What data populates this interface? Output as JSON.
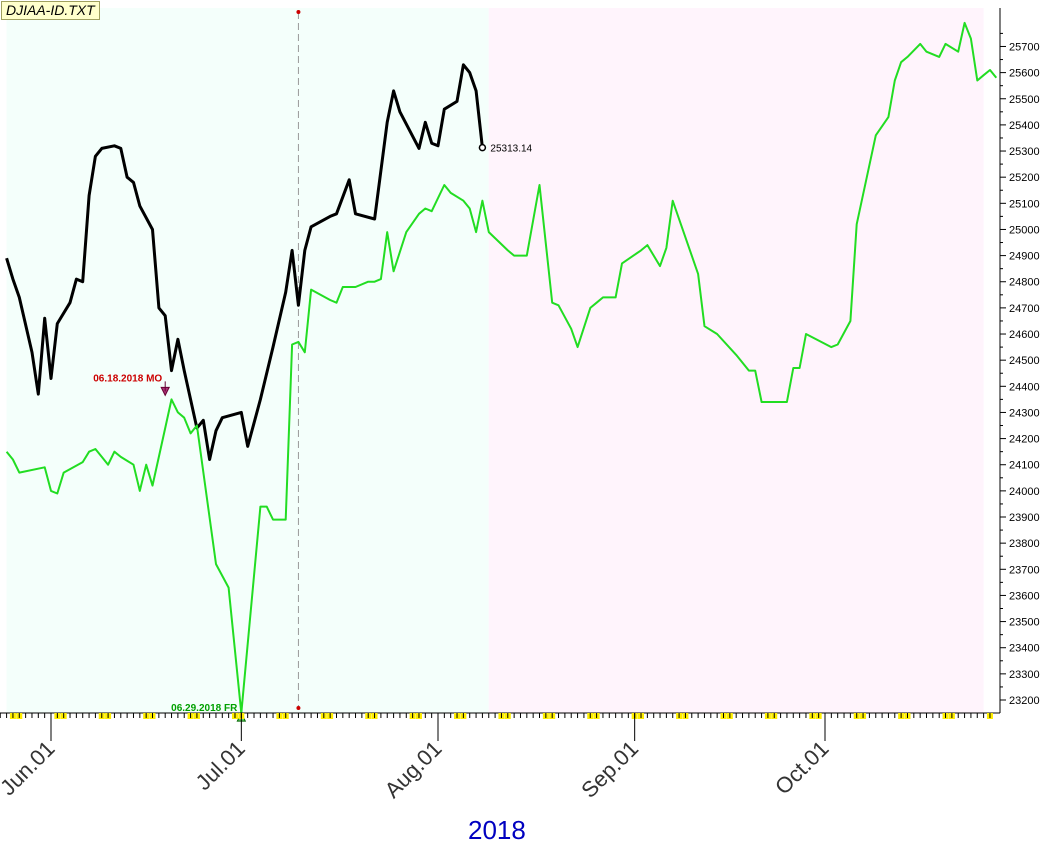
{
  "header": {
    "title": "DJIAA-ID.TXT"
  },
  "footer": {
    "year": "2018"
  },
  "colors": {
    "bg_left": "#f4fffb",
    "bg_right": "#fff4fc",
    "black_series": "#000000",
    "green_series": "#22dd22",
    "marker_down": "#cc0000",
    "marker_up": "#00a000",
    "year_label": "#0000c0",
    "title_bg": "#ffffcc"
  },
  "chart_data": {
    "type": "line",
    "title": "DJIAA-ID.TXT",
    "ylim": [
      23140,
      25780
    ],
    "y_ticks": [
      23200,
      23300,
      23400,
      23500,
      23600,
      23700,
      23800,
      23900,
      24000,
      24100,
      24200,
      24300,
      24400,
      24500,
      24600,
      24700,
      24800,
      24900,
      25000,
      25100,
      25200,
      25300,
      25400,
      25500,
      25600,
      25700
    ],
    "x_ticks": [
      {
        "date": "2018-06-01",
        "label": "Jun.01"
      },
      {
        "date": "2018-07-01",
        "label": "Jul.01"
      },
      {
        "date": "2018-08-01",
        "label": "Aug.01"
      },
      {
        "date": "2018-09-01",
        "label": "Sep.01"
      },
      {
        "date": "2018-10-01",
        "label": "Oct.01"
      }
    ],
    "x_range": [
      "2018-05-25",
      "2018-10-26"
    ],
    "shading": [
      {
        "from": "2018-05-25",
        "to": "2018-08-09",
        "color": "#f4fffb"
      },
      {
        "from": "2018-08-09",
        "to": "2018-10-26",
        "color": "#fff4fc"
      }
    ],
    "vline": {
      "date": "2018-07-10"
    },
    "series": [
      {
        "color": "#000000",
        "points": [
          [
            "2018-05-25",
            24890
          ],
          [
            "2018-05-26",
            24810
          ],
          [
            "2018-05-27",
            24740
          ],
          [
            "2018-05-29",
            24530
          ],
          [
            "2018-05-30",
            24370
          ],
          [
            "2018-05-31",
            24660
          ],
          [
            "2018-06-01",
            24430
          ],
          [
            "2018-06-02",
            24640
          ],
          [
            "2018-06-04",
            24720
          ],
          [
            "2018-06-05",
            24810
          ],
          [
            "2018-06-06",
            24800
          ],
          [
            "2018-06-07",
            25130
          ],
          [
            "2018-06-08",
            25280
          ],
          [
            "2018-06-09",
            25310
          ],
          [
            "2018-06-11",
            25320
          ],
          [
            "2018-06-12",
            25310
          ],
          [
            "2018-06-13",
            25200
          ],
          [
            "2018-06-14",
            25180
          ],
          [
            "2018-06-15",
            25090
          ],
          [
            "2018-06-17",
            25000
          ],
          [
            "2018-06-18",
            24700
          ],
          [
            "2018-06-19",
            24670
          ],
          [
            "2018-06-20",
            24460
          ],
          [
            "2018-06-21",
            24580
          ],
          [
            "2018-06-22",
            24460
          ],
          [
            "2018-06-24",
            24240
          ],
          [
            "2018-06-25",
            24270
          ],
          [
            "2018-06-26",
            24120
          ],
          [
            "2018-06-27",
            24230
          ],
          [
            "2018-06-28",
            24280
          ],
          [
            "2018-07-01",
            24300
          ],
          [
            "2018-07-02",
            24170
          ],
          [
            "2018-07-04",
            24350
          ],
          [
            "2018-07-06",
            24550
          ],
          [
            "2018-07-08",
            24760
          ],
          [
            "2018-07-09",
            24920
          ],
          [
            "2018-07-10",
            24710
          ],
          [
            "2018-07-11",
            24920
          ],
          [
            "2018-07-12",
            25010
          ],
          [
            "2018-07-15",
            25050
          ],
          [
            "2018-07-16",
            25060
          ],
          [
            "2018-07-18",
            25190
          ],
          [
            "2018-07-19",
            25060
          ],
          [
            "2018-07-22",
            25040
          ],
          [
            "2018-07-24",
            25410
          ],
          [
            "2018-07-25",
            25530
          ],
          [
            "2018-07-26",
            25450
          ],
          [
            "2018-07-29",
            25310
          ],
          [
            "2018-07-30",
            25410
          ],
          [
            "2018-07-31",
            25330
          ],
          [
            "2018-08-01",
            25320
          ],
          [
            "2018-08-02",
            25460
          ],
          [
            "2018-08-04",
            25490
          ],
          [
            "2018-08-05",
            25630
          ],
          [
            "2018-08-06",
            25600
          ],
          [
            "2018-08-07",
            25530
          ],
          [
            "2018-08-08",
            25313.14
          ]
        ],
        "last_label": "25313.14"
      },
      {
        "color": "#22dd22",
        "points": [
          [
            "2018-05-25",
            24150
          ],
          [
            "2018-05-26",
            24120
          ],
          [
            "2018-05-27",
            24070
          ],
          [
            "2018-05-31",
            24090
          ],
          [
            "2018-06-01",
            24000
          ],
          [
            "2018-06-02",
            23990
          ],
          [
            "2018-06-03",
            24070
          ],
          [
            "2018-06-06",
            24110
          ],
          [
            "2018-06-07",
            24150
          ],
          [
            "2018-06-08",
            24160
          ],
          [
            "2018-06-09",
            24130
          ],
          [
            "2018-06-10",
            24100
          ],
          [
            "2018-06-11",
            24150
          ],
          [
            "2018-06-12",
            24130
          ],
          [
            "2018-06-14",
            24100
          ],
          [
            "2018-06-15",
            24000
          ],
          [
            "2018-06-16",
            24100
          ],
          [
            "2018-06-17",
            24020
          ],
          [
            "2018-06-19",
            24240
          ],
          [
            "2018-06-20",
            24350
          ],
          [
            "2018-06-21",
            24300
          ],
          [
            "2018-06-22",
            24280
          ],
          [
            "2018-06-23",
            24220
          ],
          [
            "2018-06-24",
            24250
          ],
          [
            "2018-06-27",
            23720
          ],
          [
            "2018-06-29",
            23630
          ],
          [
            "2018-07-01",
            23150
          ],
          [
            "2018-07-04",
            23940
          ],
          [
            "2018-07-05",
            23940
          ],
          [
            "2018-07-06",
            23890
          ],
          [
            "2018-07-08",
            23890
          ],
          [
            "2018-07-09",
            24560
          ],
          [
            "2018-07-10",
            24570
          ],
          [
            "2018-07-11",
            24530
          ],
          [
            "2018-07-12",
            24770
          ],
          [
            "2018-07-15",
            24730
          ],
          [
            "2018-07-16",
            24720
          ],
          [
            "2018-07-17",
            24780
          ],
          [
            "2018-07-19",
            24780
          ],
          [
            "2018-07-21",
            24800
          ],
          [
            "2018-07-22",
            24800
          ],
          [
            "2018-07-23",
            24810
          ],
          [
            "2018-07-24",
            24990
          ],
          [
            "2018-07-25",
            24840
          ],
          [
            "2018-07-27",
            24990
          ],
          [
            "2018-07-29",
            25060
          ],
          [
            "2018-07-30",
            25080
          ],
          [
            "2018-07-31",
            25070
          ],
          [
            "2018-08-02",
            25170
          ],
          [
            "2018-08-03",
            25140
          ],
          [
            "2018-08-05",
            25110
          ],
          [
            "2018-08-06",
            25080
          ],
          [
            "2018-08-07",
            24990
          ],
          [
            "2018-08-08",
            25110
          ],
          [
            "2018-08-09",
            24990
          ],
          [
            "2018-08-12",
            24920
          ],
          [
            "2018-08-13",
            24900
          ],
          [
            "2018-08-15",
            24900
          ],
          [
            "2018-08-17",
            25170
          ],
          [
            "2018-08-19",
            24720
          ],
          [
            "2018-08-20",
            24710
          ],
          [
            "2018-08-22",
            24620
          ],
          [
            "2018-08-23",
            24550
          ],
          [
            "2018-08-25",
            24700
          ],
          [
            "2018-08-26",
            24720
          ],
          [
            "2018-08-27",
            24740
          ],
          [
            "2018-08-29",
            24740
          ],
          [
            "2018-08-30",
            24870
          ],
          [
            "2018-09-02",
            24920
          ],
          [
            "2018-09-03",
            24940
          ],
          [
            "2018-09-05",
            24860
          ],
          [
            "2018-09-06",
            24930
          ],
          [
            "2018-09-07",
            25110
          ],
          [
            "2018-09-11",
            24830
          ],
          [
            "2018-09-12",
            24630
          ],
          [
            "2018-09-14",
            24600
          ],
          [
            "2018-09-17",
            24520
          ],
          [
            "2018-09-19",
            24460
          ],
          [
            "2018-09-20",
            24460
          ],
          [
            "2018-09-21",
            24340
          ],
          [
            "2018-09-22",
            24340
          ],
          [
            "2018-09-25",
            24340
          ],
          [
            "2018-09-26",
            24470
          ],
          [
            "2018-09-27",
            24470
          ],
          [
            "2018-09-28",
            24600
          ],
          [
            "2018-10-02",
            24550
          ],
          [
            "2018-10-03",
            24560
          ],
          [
            "2018-10-05",
            24650
          ],
          [
            "2018-10-06",
            25020
          ],
          [
            "2018-10-09",
            25360
          ],
          [
            "2018-10-11",
            25430
          ],
          [
            "2018-10-12",
            25570
          ],
          [
            "2018-10-13",
            25640
          ],
          [
            "2018-10-14",
            25660
          ],
          [
            "2018-10-16",
            25710
          ],
          [
            "2018-10-17",
            25680
          ],
          [
            "2018-10-19",
            25660
          ],
          [
            "2018-10-20",
            25710
          ],
          [
            "2018-10-22",
            25680
          ],
          [
            "2018-10-23",
            25790
          ],
          [
            "2018-10-24",
            25730
          ],
          [
            "2018-10-25",
            25570
          ],
          [
            "2018-10-26",
            25590
          ],
          [
            "2018-10-27",
            25610
          ],
          [
            "2018-10-28",
            25580
          ]
        ]
      }
    ],
    "annotations": [
      {
        "text": "06.18.2018 MO",
        "date": "2018-06-19",
        "value": 24350,
        "type": "down_marker",
        "color": "#cc0000"
      },
      {
        "text": "06.29.2018 FR",
        "date": "2018-07-01",
        "value": 23150,
        "type": "up_marker",
        "color": "#00a000"
      }
    ]
  }
}
